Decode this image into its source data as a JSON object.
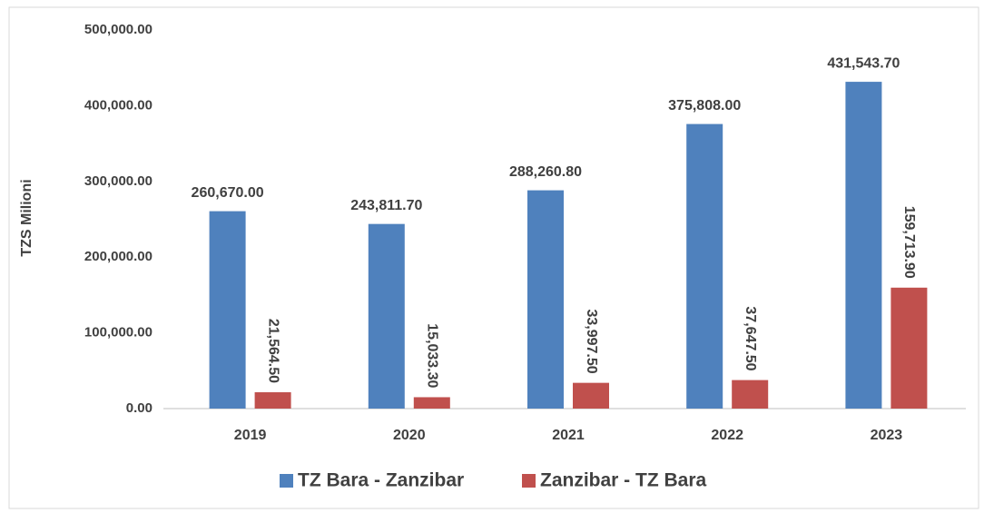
{
  "chart_data": {
    "type": "bar",
    "y_label": "TZS  Milioni",
    "categories": [
      "2019",
      "2020",
      "2021",
      "2022",
      "2023"
    ],
    "series": [
      {
        "name": "TZ Bara - Zanzibar",
        "color": "#4f81bd",
        "values": [
          260670.0,
          243811.7,
          288260.8,
          375808.0,
          431543.7
        ],
        "value_labels": [
          "260,670.00",
          "243,811.70",
          "288,260.80",
          "375,808.00",
          "431,543.70"
        ]
      },
      {
        "name": "Zanzibar - TZ Bara",
        "color": "#c0504d",
        "values": [
          21564.5,
          15033.3,
          33997.5,
          37647.5,
          159713.9
        ],
        "value_labels": [
          "21,564.50",
          "15,033.30",
          "33,997.50",
          "37,647.50",
          "159,713.90"
        ]
      }
    ],
    "ylim": [
      0,
      500000
    ],
    "yticks": [
      {
        "value": 0,
        "label": "0.00"
      },
      {
        "value": 100000,
        "label": "100,000.00"
      },
      {
        "value": 200000,
        "label": "200,000.00"
      },
      {
        "value": 300000,
        "label": "300,000.00"
      },
      {
        "value": 400000,
        "label": "400,000.00"
      },
      {
        "value": 500000,
        "label": "500,000.00"
      }
    ],
    "grid": false,
    "legend": "bottom"
  }
}
